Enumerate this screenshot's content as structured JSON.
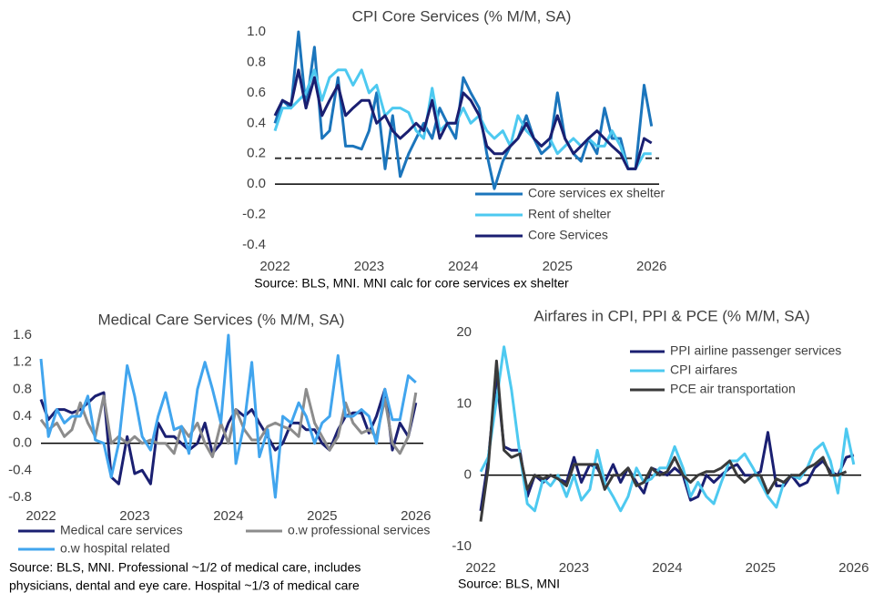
{
  "chart_data": [
    {
      "type": "line",
      "title": "CPI Core Services (% M/M, SA)",
      "source": [
        "Source: BLS, MNI. MNI calc for core services ex shelter"
      ],
      "x": [
        2022,
        2022.08,
        2022.17,
        2022.25,
        2022.33,
        2022.42,
        2022.5,
        2022.58,
        2022.67,
        2022.75,
        2022.83,
        2022.92,
        2023,
        2023.08,
        2023.17,
        2023.25,
        2023.33,
        2023.42,
        2023.5,
        2023.58,
        2023.67,
        2023.75,
        2023.83,
        2023.92,
        2024,
        2024.08,
        2024.17,
        2024.25,
        2024.33,
        2024.42,
        2024.5,
        2024.58,
        2024.67,
        2024.75,
        2024.83,
        2024.92,
        2025,
        2025.08,
        2025.17,
        2025.25,
        2025.33,
        2025.42,
        2025.5,
        2025.58,
        2025.67,
        2025.75,
        2025.83,
        2025.92,
        2026
      ],
      "series": [
        {
          "name": "Core services ex shelter",
          "color": "#1b75bc",
          "values": [
            0.4,
            0.55,
            0.5,
            1.0,
            0.5,
            0.9,
            0.3,
            0.35,
            0.7,
            0.25,
            0.25,
            0.23,
            0.35,
            0.6,
            0.1,
            0.45,
            0.05,
            0.2,
            0.3,
            0.4,
            0.3,
            0.5,
            0.4,
            0.3,
            0.7,
            0.6,
            0.5,
            0.2,
            -0.03,
            0.15,
            0.25,
            0.3,
            0.45,
            0.3,
            0.2,
            0.25,
            0.6,
            0.3,
            0.2,
            0.15,
            0.3,
            0.2,
            0.5,
            0.3,
            0.3,
            0.1,
            0.1,
            0.65,
            0.38
          ]
        },
        {
          "name": "Rent of shelter",
          "color": "#4dc9f0",
          "values": [
            0.35,
            0.5,
            0.5,
            0.55,
            0.6,
            0.75,
            0.55,
            0.7,
            0.75,
            0.75,
            0.65,
            0.75,
            0.6,
            0.65,
            0.45,
            0.5,
            0.5,
            0.47,
            0.35,
            0.3,
            0.63,
            0.35,
            0.4,
            0.4,
            0.5,
            0.4,
            0.45,
            0.35,
            0.3,
            0.35,
            0.25,
            0.45,
            0.35,
            0.3,
            0.25,
            0.3,
            0.2,
            0.25,
            0.3,
            0.25,
            0.3,
            0.25,
            0.25,
            0.35,
            0.25,
            0.1,
            0.1,
            0.2,
            0.2
          ]
        },
        {
          "name": "Core Services",
          "color": "#1a1f71",
          "values": [
            0.45,
            0.55,
            0.52,
            0.75,
            0.5,
            0.7,
            0.45,
            0.55,
            0.65,
            0.45,
            0.5,
            0.55,
            0.55,
            0.4,
            0.45,
            0.35,
            0.3,
            0.35,
            0.4,
            0.35,
            0.55,
            0.3,
            0.4,
            0.4,
            0.6,
            0.55,
            0.45,
            0.25,
            0.2,
            0.2,
            0.25,
            0.3,
            0.4,
            0.3,
            0.25,
            0.3,
            0.45,
            0.3,
            0.2,
            0.25,
            0.3,
            0.35,
            0.3,
            0.25,
            0.2,
            0.1,
            0.1,
            0.3,
            0.27
          ]
        }
      ],
      "hline": 0.17,
      "xlim": [
        2022,
        2026.08
      ],
      "xticks": [
        2022,
        2023,
        2024,
        2025,
        2026
      ],
      "ylim": [
        -0.4,
        1.0
      ],
      "yticks": [
        {
          "value": 1.0,
          "label": "1.0"
        },
        0.8,
        0.6,
        0.4,
        0.2,
        {
          "value": 0,
          "label": "0.0"
        },
        -0.2,
        -0.4
      ],
      "legend": "lower right"
    },
    {
      "type": "line",
      "title": "Medical Care Services (% M/M, SA)",
      "source": [
        "Source: BLS, MNI. Professional ~1/2 of medical care, includes",
        "physicians, dental and eye care. Hospital ~1/3 of medical care"
      ],
      "x": [
        2022,
        2022.08,
        2022.17,
        2022.25,
        2022.33,
        2022.42,
        2022.5,
        2022.58,
        2022.67,
        2022.75,
        2022.83,
        2022.92,
        2023,
        2023.08,
        2023.17,
        2023.25,
        2023.33,
        2023.42,
        2023.5,
        2023.58,
        2023.67,
        2023.75,
        2023.83,
        2023.92,
        2024,
        2024.08,
        2024.17,
        2024.25,
        2024.33,
        2024.42,
        2024.5,
        2024.58,
        2024.67,
        2024.75,
        2024.83,
        2024.92,
        2025,
        2025.08,
        2025.17,
        2025.25,
        2025.33,
        2025.42,
        2025.5,
        2025.58,
        2025.67,
        2025.75,
        2025.83,
        2025.92,
        2026
      ],
      "series": [
        {
          "name": "Medical care services",
          "color": "#1a1f71",
          "values": [
            0.65,
            0.35,
            0.5,
            0.5,
            0.45,
            0.5,
            0.6,
            0.7,
            0.75,
            -0.5,
            -0.6,
            0.1,
            -0.45,
            -0.4,
            -0.6,
            0.3,
            0.1,
            0.1,
            0.0,
            -0.1,
            0.0,
            0.3,
            -0.15,
            0.0,
            0.3,
            0.5,
            0.4,
            0.5,
            0.3,
            0.1,
            -0.1,
            0.0,
            0.3,
            0.3,
            0.2,
            0.2,
            0.0,
            -0.1,
            0.2,
            0.4,
            0.45,
            0.45,
            0.15,
            0.4,
            0.8,
            -0.1,
            0.3,
            0.1,
            0.6
          ]
        },
        {
          "name": "o.w professional services",
          "color": "#8c8c8c",
          "values": [
            0.35,
            0.2,
            0.3,
            0.1,
            0.2,
            0.6,
            0.3,
            0.1,
            0.7,
            0.0,
            0.1,
            0.0,
            0.1,
            0.0,
            0.05,
            0.0,
            0.0,
            -0.15,
            0.25,
            0.1,
            0.3,
            0.0,
            -0.2,
            0.3,
            0.0,
            0.5,
            0.2,
            0.05,
            0.05,
            0.25,
            0.3,
            0.25,
            0.2,
            0.1,
            0.8,
            0.3,
            0.1,
            -0.1,
            0.1,
            0.6,
            0.3,
            0.15,
            0.2,
            0.1,
            0.65,
            0.0,
            -0.15,
            0.1,
            0.75
          ]
        },
        {
          "name": "o.w hospital related",
          "color": "#41a5ee",
          "values": [
            1.25,
            0.1,
            0.5,
            0.3,
            0.4,
            0.4,
            0.7,
            0.05,
            0.0,
            -0.5,
            0.0,
            1.15,
            0.7,
            0.1,
            -0.1,
            0.4,
            0.75,
            0.2,
            0.25,
            -0.15,
            0.8,
            1.2,
            0.8,
            0.3,
            1.6,
            -0.3,
            0.3,
            1.2,
            -0.2,
            0.2,
            -0.8,
            0.4,
            0.3,
            0.6,
            0.4,
            0.0,
            0.3,
            0.4,
            1.3,
            0.4,
            0.4,
            0.5,
            0.4,
            0.0,
            0.8,
            0.35,
            0.35,
            1.0,
            0.9
          ]
        }
      ],
      "xlim": [
        2022,
        2026.08
      ],
      "xticks": [
        2022,
        2023,
        2024,
        2025,
        2026
      ],
      "ylim": [
        -0.8,
        1.6
      ],
      "yticks": [
        1.6,
        1.2,
        0.8,
        0.4,
        {
          "value": 0,
          "label": "0.0"
        },
        -0.4,
        -0.8
      ],
      "legend": "below"
    },
    {
      "type": "line",
      "title": "Airfares in CPI, PPI & PCE (% M/M, SA)",
      "source": [
        "Source: BLS, MNI"
      ],
      "x": [
        2022,
        2022.08,
        2022.17,
        2022.25,
        2022.33,
        2022.42,
        2022.5,
        2022.58,
        2022.67,
        2022.75,
        2022.83,
        2022.92,
        2023,
        2023.08,
        2023.17,
        2023.25,
        2023.33,
        2023.42,
        2023.5,
        2023.58,
        2023.67,
        2023.75,
        2023.83,
        2023.92,
        2024,
        2024.08,
        2024.17,
        2024.25,
        2024.33,
        2024.42,
        2024.5,
        2024.58,
        2024.67,
        2024.75,
        2024.83,
        2024.92,
        2025,
        2025.08,
        2025.17,
        2025.25,
        2025.33,
        2025.42,
        2025.5,
        2025.58,
        2025.67,
        2025.75,
        2025.83,
        2025.92,
        2026
      ],
      "series": [
        {
          "name": "PPI airline passenger services",
          "color": "#1a1f71",
          "values": [
            -5,
            2,
            14,
            4,
            3.5,
            3.5,
            -3,
            0,
            -1,
            0,
            -0.5,
            -1,
            2.5,
            -1,
            1.5,
            1,
            -1,
            1.5,
            -1,
            1,
            -1,
            -2.5,
            1,
            0.5,
            0,
            1,
            0,
            -3.5,
            -3,
            0,
            -1,
            0,
            1,
            1.5,
            0,
            0,
            0.5,
            6,
            -1.5,
            -1.5,
            0,
            -1.5,
            -1,
            1,
            2,
            0.5,
            0,
            2.5,
            2.8
          ]
        },
        {
          "name": "CPI airfares",
          "color": "#4dc9f0",
          "values": [
            0.5,
            2.5,
            10.5,
            18,
            12,
            3,
            -4,
            -5,
            -0.5,
            -1.5,
            0,
            -3,
            0,
            -3.5,
            -2,
            3.5,
            -1,
            -3,
            -5,
            -3,
            1,
            -1,
            -0.5,
            1,
            1,
            4,
            1,
            -3,
            -1,
            -3,
            -4,
            -1,
            2,
            2,
            3,
            1,
            -1,
            -3,
            -4.5,
            -1,
            0,
            -0.5,
            1,
            3.5,
            4.5,
            2,
            -2.5,
            6.5,
            1.5
          ]
        },
        {
          "name": "PCE air transportation",
          "color": "#3a3a3a",
          "values": [
            -6.5,
            1,
            16,
            3.5,
            2.5,
            3,
            -2,
            0,
            -0.5,
            0,
            -0.5,
            -1.5,
            1.5,
            1.5,
            1.5,
            1.5,
            -2,
            0,
            0,
            1,
            -1.5,
            -1,
            1,
            0,
            0.5,
            2.5,
            0,
            -1,
            0,
            0.5,
            0.5,
            1,
            2,
            0,
            -1,
            0,
            0,
            -2.5,
            -0.5,
            -1,
            0,
            0,
            1,
            1.5,
            2.5,
            0,
            0,
            0.5,
            null
          ]
        }
      ],
      "xlim": [
        2022,
        2026.08
      ],
      "xticks": [
        2022,
        2023,
        2024,
        2025,
        2026
      ],
      "ylim": [
        -10,
        20
      ],
      "yticks": [
        20,
        10,
        0,
        -10
      ],
      "legend": "upper right"
    }
  ]
}
